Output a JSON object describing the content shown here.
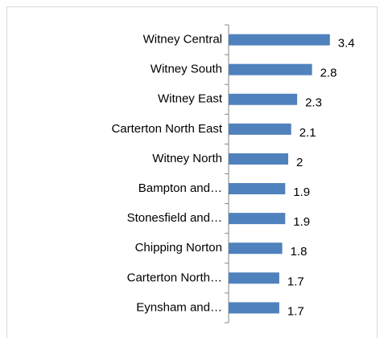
{
  "chart_data": {
    "type": "bar",
    "orientation": "horizontal",
    "categories": [
      "Witney Central",
      "Witney South",
      "Witney East",
      "Carterton North East",
      "Witney North",
      "Bampton and…",
      "Stonesfield and…",
      "Chipping Norton",
      "Carterton North…",
      "Eynsham and…"
    ],
    "values": [
      3.4,
      2.8,
      2.3,
      2.1,
      2,
      1.9,
      1.9,
      1.8,
      1.7,
      1.7
    ],
    "color": "#4f81bd"
  }
}
